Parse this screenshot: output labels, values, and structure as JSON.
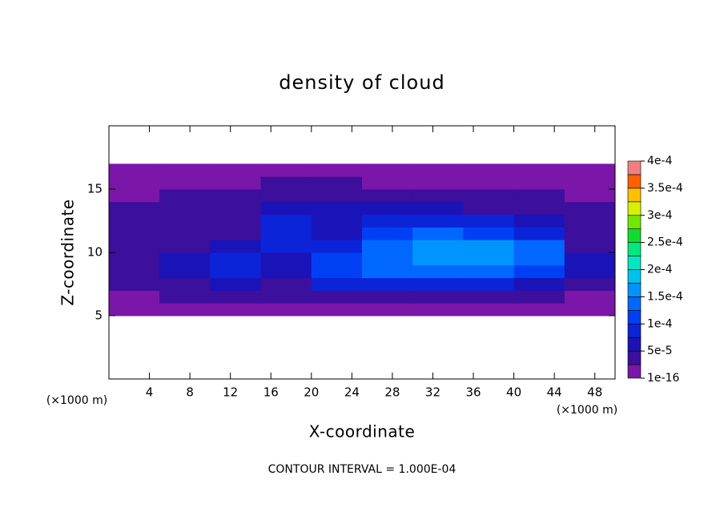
{
  "chart_data": {
    "type": "heatmap",
    "title": "density of cloud",
    "x_label": "X-coordinate",
    "y_label": "Z-coordinate",
    "unit_label": "(×1000 m)",
    "footer": "CONTOUR INTERVAL = 1.000E-04",
    "xlim": [
      0,
      50
    ],
    "ylim": [
      0,
      20
    ],
    "xticks": [
      4,
      8,
      12,
      16,
      20,
      24,
      28,
      32,
      36,
      40,
      44,
      48
    ],
    "yticks": [
      5,
      10,
      15
    ],
    "x_edges": [
      0,
      5,
      10,
      15,
      20,
      25,
      30,
      35,
      40,
      45,
      50
    ],
    "y_edges": [
      5,
      6,
      7,
      8,
      9,
      10,
      11,
      12,
      13,
      14,
      15,
      16,
      17
    ],
    "values": [
      [
        1e-05,
        1e-05,
        1e-05,
        1e-05,
        2e-05,
        1e-05,
        1e-05,
        1e-05,
        1e-05,
        1e-05
      ],
      [
        2e-05,
        3e-05,
        3e-05,
        4e-05,
        5e-05,
        4e-05,
        4e-05,
        5e-05,
        4e-05,
        2e-05
      ],
      [
        4e-05,
        5e-05,
        6e-05,
        5e-05,
        9e-05,
        0.0001,
        8e-05,
        9e-05,
        6e-05,
        5e-05
      ],
      [
        5e-05,
        7e-05,
        9e-05,
        6e-05,
        0.00012,
        0.00013,
        0.00014,
        0.00015,
        0.00012,
        7e-05
      ],
      [
        5e-05,
        7e-05,
        8e-05,
        7e-05,
        0.00012,
        0.00015,
        0.00016,
        0.00016,
        0.00015,
        6e-05
      ],
      [
        4e-05,
        5e-05,
        6e-05,
        8e-05,
        9e-05,
        0.00014,
        0.00017,
        0.00016,
        0.00014,
        5e-05
      ],
      [
        3e-05,
        4e-05,
        5e-05,
        9e-05,
        6e-05,
        0.00011,
        0.00015,
        0.00012,
        9e-05,
        4e-05
      ],
      [
        3e-05,
        4e-05,
        5e-05,
        9e-05,
        6e-05,
        8e-05,
        0.0001,
        9e-05,
        7e-05,
        3e-05
      ],
      [
        3e-05,
        3e-05,
        4e-05,
        7e-05,
        6e-05,
        6e-05,
        6e-05,
        5e-05,
        4e-05,
        3e-05
      ],
      [
        2e-05,
        3e-05,
        4e-05,
        5e-05,
        5e-05,
        4e-05,
        4e-05,
        3e-05,
        3e-05,
        2e-05
      ],
      [
        1e-05,
        2e-05,
        2e-05,
        3e-05,
        3e-05,
        2e-05,
        2e-05,
        2e-05,
        1e-05,
        1e-05
      ],
      [
        1e-05,
        1e-05,
        1e-05,
        1e-05,
        1e-05,
        1e-05,
        1e-05,
        1e-05,
        1e-05,
        1e-05
      ]
    ],
    "clim": [
      1e-16,
      0.0004
    ],
    "colors": [
      "#7a16a8",
      "#3c0f9c",
      "#1a14b8",
      "#0c24d8",
      "#0040f4",
      "#0068ff",
      "#0094ff",
      "#00c0f0",
      "#00e8c0",
      "#00e880",
      "#10dc30",
      "#70e800",
      "#d8f000",
      "#ffc000",
      "#ff6000",
      "#f08080"
    ],
    "colorbar_ticks": [
      {
        "value": 1e-16,
        "label": "1e-16"
      },
      {
        "value": 5e-05,
        "label": "5e-5"
      },
      {
        "value": 0.0001,
        "label": "1e-4"
      },
      {
        "value": 0.00015,
        "label": "1.5e-4"
      },
      {
        "value": 0.0002,
        "label": "2e-4"
      },
      {
        "value": 0.00025,
        "label": "2.5e-4"
      },
      {
        "value": 0.0003,
        "label": "3e-4"
      },
      {
        "value": 0.00035,
        "label": "3.5e-4"
      },
      {
        "value": 0.0004,
        "label": "4e-4"
      }
    ]
  }
}
